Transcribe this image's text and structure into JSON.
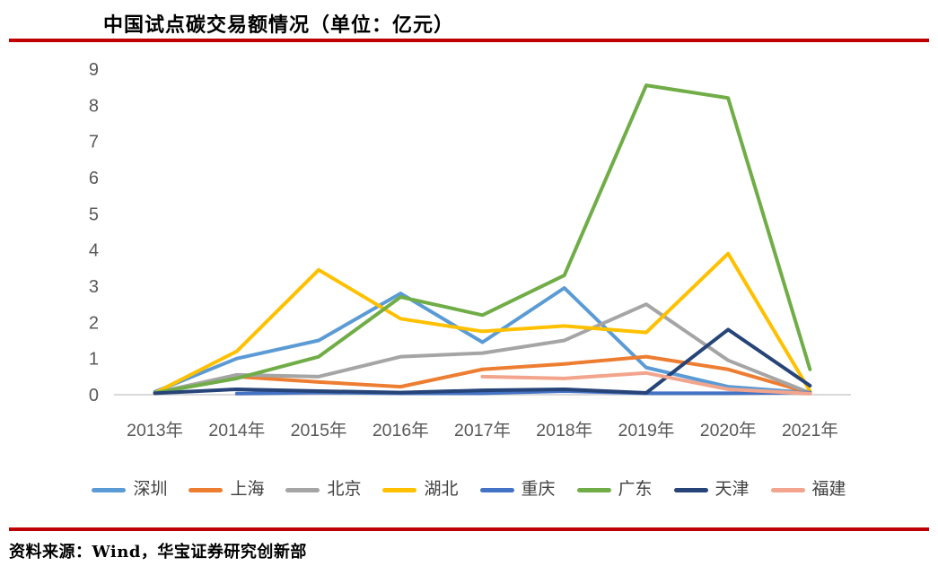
{
  "chart": {
    "title": "中国试点碳交易额情况（单位：亿元）"
  },
  "chart_data": {
    "type": "line",
    "title": "中国试点碳交易额情况（单位：亿元）",
    "unit": "亿元",
    "categories": [
      "2013年",
      "2014年",
      "2015年",
      "2016年",
      "2017年",
      "2018年",
      "2019年",
      "2020年",
      "2021年"
    ],
    "series": [
      {
        "id": "shenzhen",
        "name": "深圳",
        "color": "#5B9BD5",
        "values": [
          0.08,
          1.0,
          1.5,
          2.8,
          1.45,
          2.95,
          0.75,
          0.22,
          0.05
        ]
      },
      {
        "id": "shanghai",
        "name": "上海",
        "color": "#ED7D31",
        "values": [
          0.05,
          0.5,
          0.35,
          0.22,
          0.7,
          0.85,
          1.05,
          0.7,
          0.05
        ]
      },
      {
        "id": "beijing",
        "name": "北京",
        "color": "#A5A5A5",
        "values": [
          0.05,
          0.55,
          0.5,
          1.05,
          1.15,
          1.5,
          2.5,
          0.95,
          0.05
        ]
      },
      {
        "id": "hubei",
        "name": "湖北",
        "color": "#FFC000",
        "values": [
          0.05,
          1.2,
          3.45,
          2.1,
          1.75,
          1.9,
          1.72,
          3.9,
          0.1
        ]
      },
      {
        "id": "chongqing",
        "name": "重庆",
        "color": "#4472C4",
        "values": [
          null,
          0.03,
          0.06,
          0.04,
          0.04,
          0.1,
          0.04,
          0.04,
          0.06
        ]
      },
      {
        "id": "guangdong",
        "name": "广东",
        "color": "#70AD47",
        "values": [
          0.05,
          0.45,
          1.05,
          2.7,
          2.2,
          3.3,
          8.55,
          8.2,
          0.7
        ]
      },
      {
        "id": "tianjin",
        "name": "天津",
        "color": "#264478",
        "values": [
          0.04,
          0.15,
          0.1,
          0.06,
          0.12,
          0.15,
          0.05,
          1.8,
          0.25
        ]
      },
      {
        "id": "fujian",
        "name": "福建",
        "color": "#F2A58C",
        "values": [
          null,
          null,
          null,
          null,
          0.5,
          0.45,
          0.6,
          0.15,
          0.03
        ]
      }
    ],
    "ylim": [
      0,
      9
    ],
    "yticks": [
      0,
      1,
      2,
      3,
      4,
      5,
      6,
      7,
      8,
      9
    ],
    "grid": false,
    "legend_position": "bottom"
  },
  "source": {
    "text": "资料来源：Wind，华宝证券研究创新部"
  },
  "style": {
    "rule_color": "#C00000",
    "axis_text_color": "#595959",
    "axis_line_color": "#D9D9D9"
  }
}
